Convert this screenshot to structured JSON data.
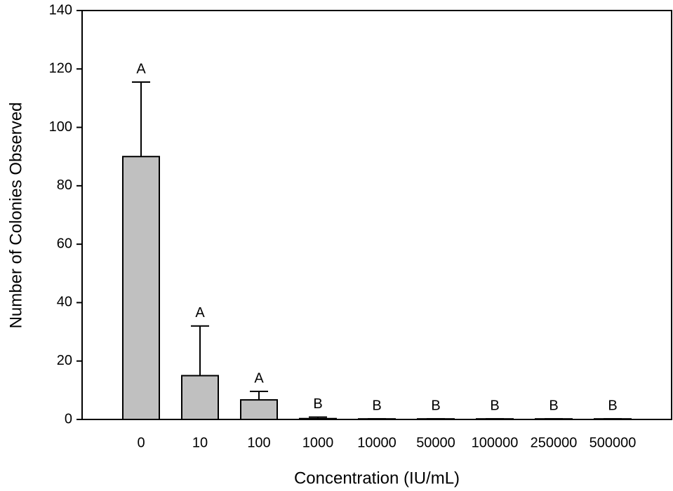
{
  "chart_data": {
    "type": "bar",
    "x_label": "Concentration (IU/mL)",
    "y_label": "Number of Colonies Observed",
    "categories": [
      "0",
      "10",
      "100",
      "1000",
      "10000",
      "50000",
      "100000",
      "250000",
      "500000"
    ],
    "values": [
      90,
      15,
      6.7,
      0.3,
      0.2,
      0.2,
      0.2,
      0.2,
      0.2
    ],
    "errors": [
      25.5,
      17,
      2.9,
      0.5,
      0,
      0,
      0,
      0,
      0
    ],
    "annotations": [
      "A",
      "A",
      "A",
      "B",
      "B",
      "B",
      "B",
      "B",
      "B"
    ],
    "color": "#c0c0c0",
    "ylim": [
      0,
      140
    ],
    "yticks": [
      0,
      20,
      40,
      60,
      80,
      100,
      120,
      140
    ],
    "grid": false
  }
}
